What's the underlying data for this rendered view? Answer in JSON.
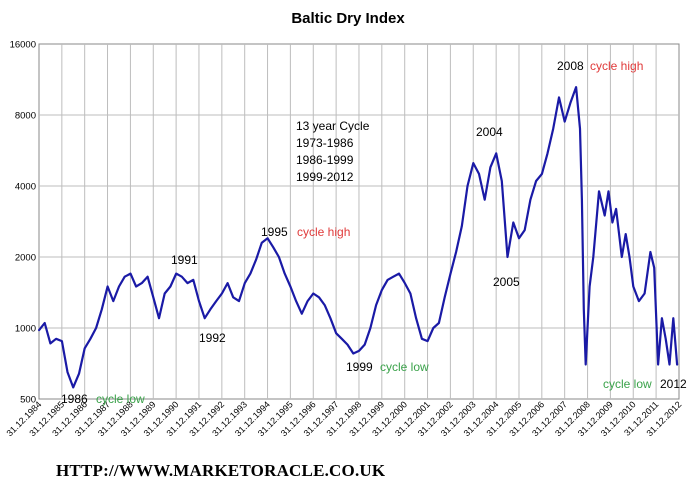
{
  "footer": {
    "url": "HTTP://WWW.MARKETORACLE.CO.UK"
  },
  "colors": {
    "line": "#1a1aa6",
    "grid": "#bdbdbd",
    "red": "#e03a3a",
    "green": "#3aa24a",
    "text": "#000000"
  },
  "chart_data": {
    "type": "line",
    "title": "Baltic Dry Index",
    "xlabel": "",
    "ylabel": "",
    "y_scale": "log2",
    "ylim": [
      500,
      16000
    ],
    "yticks": [
      500,
      1000,
      2000,
      4000,
      8000,
      16000
    ],
    "xlim": [
      "1984-12-31",
      "2012-12-31"
    ],
    "xticks": [
      "31.12.1984",
      "31.12.1985",
      "31.12.1986",
      "31.12.1987",
      "31.12.1988",
      "31.12.1989",
      "31.12.1990",
      "31.12.1991",
      "31.12.1992",
      "31.12.1993",
      "31.12.1994",
      "31.12.1995",
      "31.12.1996",
      "31.12.1997",
      "31.12.1998",
      "31.12.1999",
      "31.12.2000",
      "31.12.2001",
      "31.12.2002",
      "31.12.2003",
      "31.12.2004",
      "31.12.2005",
      "31.12.2006",
      "31.12.2007",
      "31.12.2008",
      "31.12.2009",
      "31.12.2010",
      "31.12.2011",
      "31.12.2012"
    ],
    "grid": true,
    "legend": "none",
    "series": [
      {
        "points": [
          [
            "1985-01-01",
            980
          ],
          [
            "1985-04-01",
            1050
          ],
          [
            "1985-07-01",
            860
          ],
          [
            "1985-10-01",
            900
          ],
          [
            "1986-01-01",
            880
          ],
          [
            "1986-04-01",
            650
          ],
          [
            "1986-07-01",
            560
          ],
          [
            "1986-10-01",
            640
          ],
          [
            "1987-01-01",
            820
          ],
          [
            "1987-04-01",
            900
          ],
          [
            "1987-07-01",
            1000
          ],
          [
            "1987-10-01",
            1200
          ],
          [
            "1988-01-01",
            1500
          ],
          [
            "1988-04-01",
            1300
          ],
          [
            "1988-07-01",
            1500
          ],
          [
            "1988-10-01",
            1650
          ],
          [
            "1989-01-01",
            1700
          ],
          [
            "1989-04-01",
            1500
          ],
          [
            "1989-07-01",
            1550
          ],
          [
            "1989-10-01",
            1650
          ],
          [
            "1990-01-01",
            1350
          ],
          [
            "1990-04-01",
            1100
          ],
          [
            "1990-07-01",
            1400
          ],
          [
            "1990-10-01",
            1500
          ],
          [
            "1991-01-01",
            1700
          ],
          [
            "1991-04-01",
            1650
          ],
          [
            "1991-07-01",
            1550
          ],
          [
            "1991-10-01",
            1600
          ],
          [
            "1992-01-01",
            1300
          ],
          [
            "1992-04-01",
            1100
          ],
          [
            "1992-07-01",
            1200
          ],
          [
            "1992-10-01",
            1300
          ],
          [
            "1993-01-01",
            1400
          ],
          [
            "1993-04-01",
            1550
          ],
          [
            "1993-07-01",
            1350
          ],
          [
            "1993-10-01",
            1300
          ],
          [
            "1994-01-01",
            1550
          ],
          [
            "1994-04-01",
            1700
          ],
          [
            "1994-07-01",
            1950
          ],
          [
            "1994-10-01",
            2300
          ],
          [
            "1995-01-01",
            2400
          ],
          [
            "1995-04-01",
            2200
          ],
          [
            "1995-07-01",
            2000
          ],
          [
            "1995-10-01",
            1700
          ],
          [
            "1996-01-01",
            1500
          ],
          [
            "1996-04-01",
            1300
          ],
          [
            "1996-07-01",
            1150
          ],
          [
            "1996-10-01",
            1300
          ],
          [
            "1997-01-01",
            1400
          ],
          [
            "1997-04-01",
            1350
          ],
          [
            "1997-07-01",
            1250
          ],
          [
            "1997-10-01",
            1100
          ],
          [
            "1998-01-01",
            950
          ],
          [
            "1998-04-01",
            900
          ],
          [
            "1998-07-01",
            850
          ],
          [
            "1998-10-01",
            780
          ],
          [
            "1999-01-01",
            800
          ],
          [
            "1999-04-01",
            850
          ],
          [
            "1999-07-01",
            1000
          ],
          [
            "1999-10-01",
            1250
          ],
          [
            "2000-01-01",
            1450
          ],
          [
            "2000-04-01",
            1600
          ],
          [
            "2000-07-01",
            1650
          ],
          [
            "2000-10-01",
            1700
          ],
          [
            "2001-01-01",
            1550
          ],
          [
            "2001-04-01",
            1400
          ],
          [
            "2001-07-01",
            1100
          ],
          [
            "2001-10-01",
            900
          ],
          [
            "2002-01-01",
            880
          ],
          [
            "2002-04-01",
            1000
          ],
          [
            "2002-07-01",
            1050
          ],
          [
            "2002-10-01",
            1350
          ],
          [
            "2003-01-01",
            1700
          ],
          [
            "2003-04-01",
            2100
          ],
          [
            "2003-07-01",
            2700
          ],
          [
            "2003-10-01",
            4000
          ],
          [
            "2004-01-01",
            5000
          ],
          [
            "2004-04-01",
            4500
          ],
          [
            "2004-07-01",
            3500
          ],
          [
            "2004-10-01",
            4800
          ],
          [
            "2005-01-01",
            5500
          ],
          [
            "2005-04-01",
            4200
          ],
          [
            "2005-07-01",
            2000
          ],
          [
            "2005-10-01",
            2800
          ],
          [
            "2006-01-01",
            2400
          ],
          [
            "2006-04-01",
            2600
          ],
          [
            "2006-07-01",
            3500
          ],
          [
            "2006-10-01",
            4200
          ],
          [
            "2007-01-01",
            4500
          ],
          [
            "2007-04-01",
            5500
          ],
          [
            "2007-07-01",
            7000
          ],
          [
            "2007-10-01",
            9500
          ],
          [
            "2008-01-01",
            7500
          ],
          [
            "2008-04-01",
            9000
          ],
          [
            "2008-07-01",
            10500
          ],
          [
            "2008-09-01",
            7000
          ],
          [
            "2008-10-01",
            3500
          ],
          [
            "2008-11-01",
            1200
          ],
          [
            "2008-12-01",
            700
          ],
          [
            "2009-02-01",
            1500
          ],
          [
            "2009-04-01",
            2000
          ],
          [
            "2009-07-01",
            3800
          ],
          [
            "2009-10-01",
            3000
          ],
          [
            "2009-12-01",
            3800
          ],
          [
            "2010-02-01",
            2800
          ],
          [
            "2010-04-01",
            3200
          ],
          [
            "2010-07-01",
            2000
          ],
          [
            "2010-09-01",
            2500
          ],
          [
            "2010-11-01",
            2000
          ],
          [
            "2011-01-01",
            1500
          ],
          [
            "2011-04-01",
            1300
          ],
          [
            "2011-07-01",
            1400
          ],
          [
            "2011-10-01",
            2100
          ],
          [
            "2011-12-01",
            1800
          ],
          [
            "2012-02-01",
            700
          ],
          [
            "2012-04-01",
            1100
          ],
          [
            "2012-06-01",
            900
          ],
          [
            "2012-08-01",
            700
          ],
          [
            "2012-10-01",
            1100
          ],
          [
            "2012-12-01",
            700
          ]
        ]
      }
    ],
    "annotations": [
      {
        "label": "1986",
        "note": "cycle low",
        "note_color": "green"
      },
      {
        "label": "1991"
      },
      {
        "label": "1992"
      },
      {
        "label": "1995",
        "note": "cycle high",
        "note_color": "red"
      },
      {
        "label": "1999",
        "note": "cycle low",
        "note_color": "green"
      },
      {
        "label": "2004"
      },
      {
        "label": "2005"
      },
      {
        "label": "2008",
        "note": "cycle high",
        "note_color": "red"
      },
      {
        "label": "",
        "note": "cycle low",
        "note_color": "green"
      },
      {
        "label": "2012"
      }
    ],
    "text_box": [
      "13 year Cycle",
      "1973-1986",
      "1986-1999",
      "1999-2012"
    ]
  }
}
